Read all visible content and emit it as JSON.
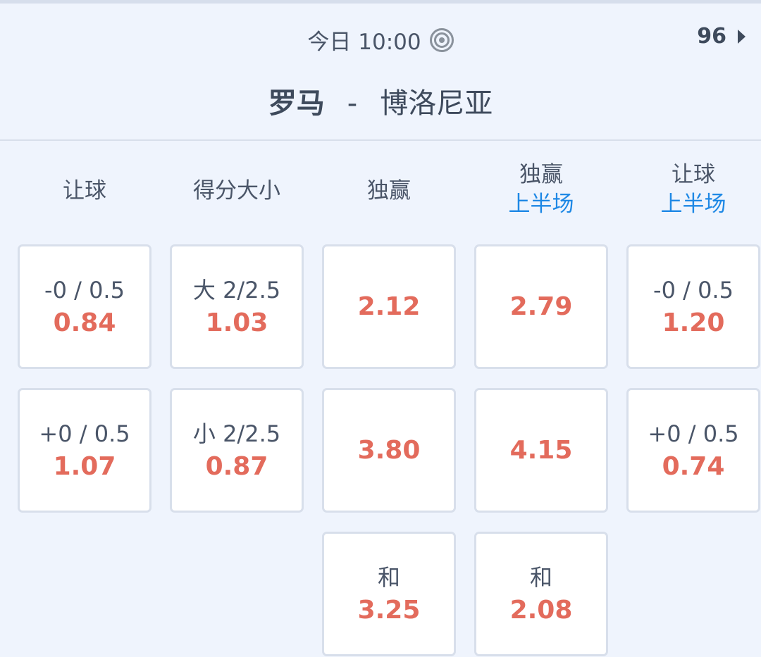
{
  "header": {
    "time": "今日 10:00",
    "live_icon": "target-icon",
    "market_count": "96",
    "home": "罗马",
    "separator": "-",
    "away": "博洛尼亚"
  },
  "colors": {
    "odds": "#e36b5c",
    "subtitle": "#1e88e5",
    "background": "#eff4fd"
  },
  "columns": [
    {
      "title": "让球",
      "sub": "",
      "cells": [
        {
          "label": "-0 / 0.5",
          "odds": "0.84"
        },
        {
          "label": "+0 / 0.5",
          "odds": "1.07"
        }
      ]
    },
    {
      "title": "得分大小",
      "sub": "",
      "cells": [
        {
          "label": "大 2/2.5",
          "odds": "1.03"
        },
        {
          "label": "小 2/2.5",
          "odds": "0.87"
        }
      ]
    },
    {
      "title": "独赢",
      "sub": "",
      "cells": [
        {
          "label": "",
          "odds": "2.12"
        },
        {
          "label": "",
          "odds": "3.80"
        },
        {
          "label": "和",
          "odds": "3.25"
        }
      ]
    },
    {
      "title": "独赢",
      "sub": "上半场",
      "cells": [
        {
          "label": "",
          "odds": "2.79"
        },
        {
          "label": "",
          "odds": "4.15"
        },
        {
          "label": "和",
          "odds": "2.08"
        }
      ]
    },
    {
      "title": "让球",
      "sub": "上半场",
      "cells": [
        {
          "label": "-0 / 0.5",
          "odds": "1.20"
        },
        {
          "label": "+0 / 0.5",
          "odds": "0.74"
        }
      ]
    }
  ]
}
